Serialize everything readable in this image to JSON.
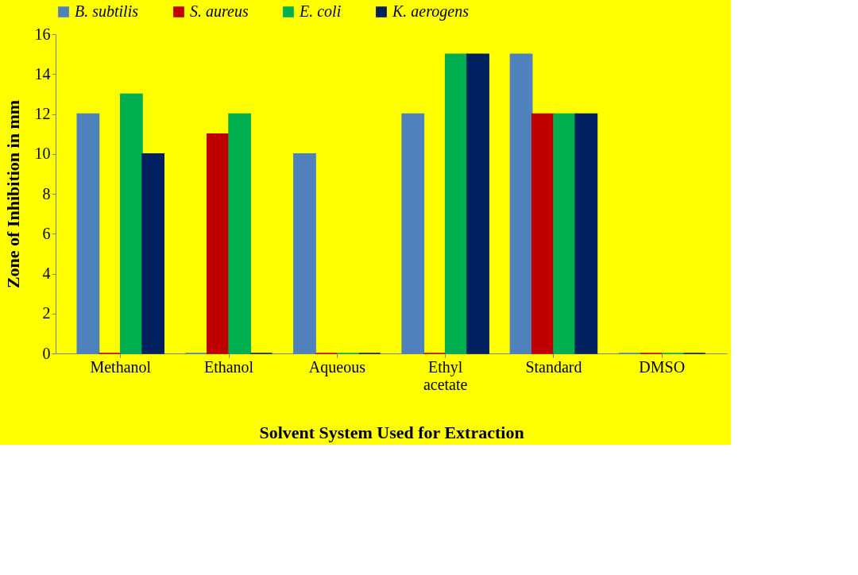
{
  "chart_data": {
    "type": "bar",
    "xlabel": "Solvent System Used for Extraction",
    "ylabel": "Zone of Inhibition  in  mm",
    "categories": [
      "Methanol",
      "Ethanol",
      "Aqueous",
      "Ethyl acetate",
      "Standard",
      "DMSO"
    ],
    "series": [
      {
        "name": "B. subtilis",
        "color": "#4f81bd",
        "values": [
          12,
          0,
          10,
          12,
          15,
          0
        ]
      },
      {
        "name": "S. aureus",
        "color": "#c00000",
        "values": [
          0,
          11,
          0,
          0,
          12,
          0
        ]
      },
      {
        "name": "E. coli",
        "color": "#00b050",
        "values": [
          13,
          12,
          0,
          15,
          12,
          0
        ]
      },
      {
        "name": "K. aerogens",
        "color": "#002060",
        "values": [
          10,
          0,
          0,
          15,
          12,
          0
        ]
      }
    ],
    "ylim": [
      0,
      16
    ],
    "yticks": [
      0,
      2,
      4,
      6,
      8,
      10,
      12,
      14,
      16
    ],
    "grid": false,
    "legend": "top"
  }
}
